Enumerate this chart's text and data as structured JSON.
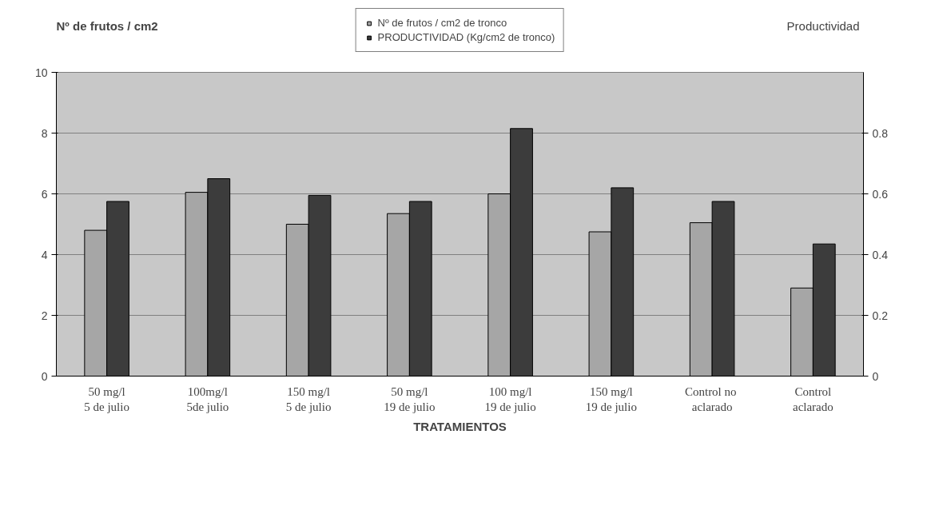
{
  "chart_data": {
    "type": "bar",
    "xlabel": "TRATAMIENTOS",
    "ylabel": "Nº de frutos / cm2",
    "y2label": "Productividad",
    "categories": [
      "50 mg/l\n5 de julio",
      "100mg/l\n5de julio",
      "150 mg/l\n5 de julio",
      "50 mg/l\n19 de julio",
      "100 mg/l\n19 de julio",
      "150 mg/l\n19 de julio",
      "Control  no\naclarado",
      "Control\naclarado"
    ],
    "series": [
      {
        "name": "Nº de frutos / cm2 de tronco",
        "color": "#a6a6a6",
        "values": [
          4.8,
          6.05,
          5.0,
          5.35,
          6.0,
          4.75,
          5.05,
          2.9
        ]
      },
      {
        "name": "PRODUCTIVIDAD (Kg/cm2 de tronco)",
        "color": "#3c3c3c",
        "axis": "y2",
        "values": [
          0.575,
          0.65,
          0.595,
          0.575,
          0.815,
          0.62,
          0.575,
          0.435
        ]
      }
    ],
    "ylim": [
      0,
      10
    ],
    "yticks": [
      0,
      2,
      4,
      6,
      8,
      10
    ],
    "y2lim": [
      0,
      1
    ],
    "y2ticks": [
      0,
      0.2,
      0.4,
      0.6,
      0.8
    ],
    "grid": "y",
    "legend": "top"
  }
}
